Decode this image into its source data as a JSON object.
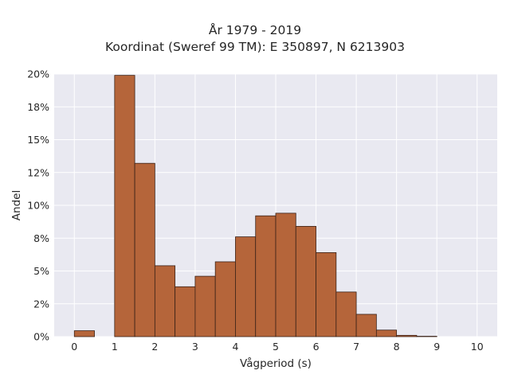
{
  "chart_data": {
    "type": "bar",
    "title_line1": "År 1979 - 2019",
    "title_line2": "Koordinat (Sweref 99 TM): E 350897, N 6213903",
    "xlabel": "Vågperiod (s)",
    "ylabel": "Andel",
    "xlim": [
      -0.5,
      10.5
    ],
    "ylim": [
      0,
      0.2
    ],
    "x_ticks": [
      0,
      1,
      2,
      3,
      4,
      5,
      6,
      7,
      8,
      9,
      10
    ],
    "y_ticks": [
      0,
      0.025,
      0.05,
      0.075,
      0.1,
      0.125,
      0.15,
      0.175,
      0.2
    ],
    "y_tick_labels": [
      "0%",
      "2%",
      "5%",
      "8%",
      "10%",
      "12%",
      "15%",
      "18%",
      "20%"
    ],
    "bin_width": 0.5,
    "bins": [
      {
        "x0": 0.0,
        "value": 0.0045
      },
      {
        "x0": 1.0,
        "value": 0.199
      },
      {
        "x0": 1.5,
        "value": 0.132
      },
      {
        "x0": 2.0,
        "value": 0.054
      },
      {
        "x0": 2.5,
        "value": 0.038
      },
      {
        "x0": 3.0,
        "value": 0.046
      },
      {
        "x0": 3.5,
        "value": 0.057
      },
      {
        "x0": 4.0,
        "value": 0.076
      },
      {
        "x0": 4.5,
        "value": 0.092
      },
      {
        "x0": 5.0,
        "value": 0.094
      },
      {
        "x0": 5.5,
        "value": 0.084
      },
      {
        "x0": 6.0,
        "value": 0.064
      },
      {
        "x0": 6.5,
        "value": 0.034
      },
      {
        "x0": 7.0,
        "value": 0.017
      },
      {
        "x0": 7.5,
        "value": 0.005
      },
      {
        "x0": 8.0,
        "value": 0.001
      },
      {
        "x0": 8.5,
        "value": 0.0003
      }
    ],
    "bar_color": "#b5653a",
    "bar_edge_color": "#3a2218",
    "background_color": "#e9e9f1",
    "grid": true
  }
}
